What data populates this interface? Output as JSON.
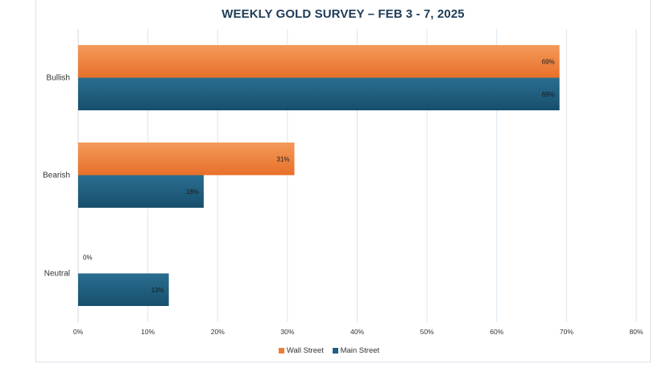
{
  "chart_data": {
    "type": "bar",
    "orientation": "horizontal",
    "title": "WEEKLY GOLD SURVEY – FEB 3 - 7, 2025",
    "categories": [
      "Bullish",
      "Bearish",
      "Neutral"
    ],
    "series": [
      {
        "name": "Wall Street",
        "color": "#ED7D31",
        "values": [
          69,
          31,
          0
        ],
        "labels": [
          "69%",
          "31%",
          "0%"
        ]
      },
      {
        "name": "Main Street",
        "color": "#1F5F7F",
        "values": [
          69,
          18,
          13
        ],
        "labels": [
          "69%",
          "18%",
          "13%"
        ]
      }
    ],
    "x_ticks": [
      "0%",
      "10%",
      "20%",
      "30%",
      "40%",
      "50%",
      "60%",
      "70%",
      "80%"
    ],
    "xlim": [
      0,
      80
    ],
    "grid": "vertical",
    "legend_position": "bottom"
  }
}
